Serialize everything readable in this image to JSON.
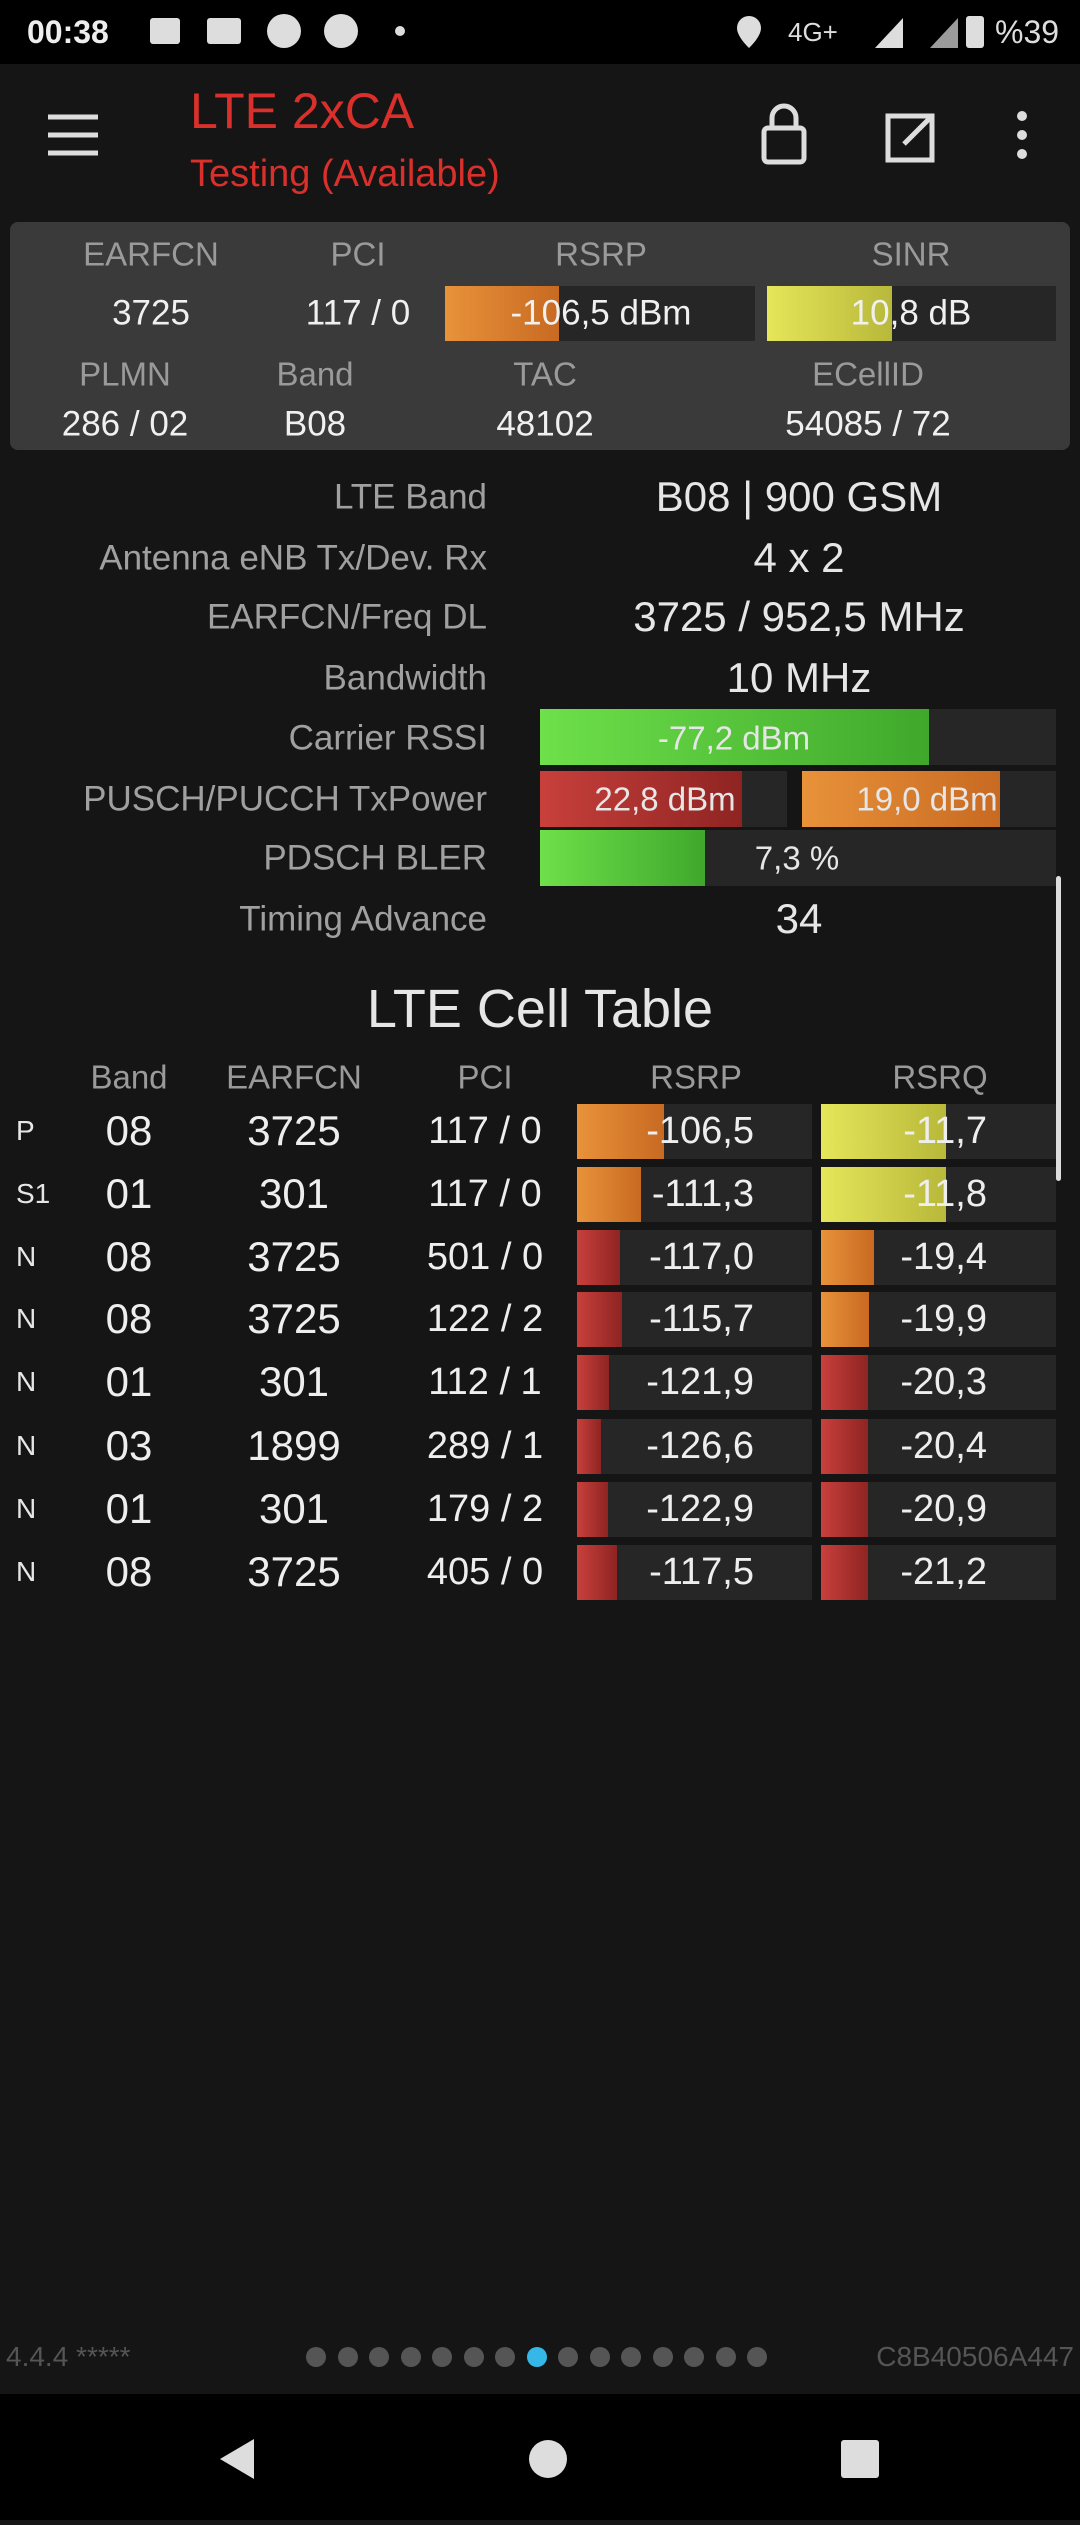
{
  "status_bar": {
    "time": "00:38",
    "network": "4G+",
    "battery": "%39"
  },
  "app_bar": {
    "title": "LTE 2xCA",
    "subtitle": "Testing (Available)"
  },
  "summary": {
    "headers": [
      "EARFCN",
      "PCI",
      "RSRP",
      "SINR"
    ],
    "values": [
      "3725",
      "117 / 0",
      "-106,5 dBm",
      "10,8 dB"
    ],
    "headers2": [
      "PLMN",
      "Band",
      "TAC",
      "ECellID"
    ],
    "values2": [
      "286 / 02",
      "B08",
      "48102",
      "54085 / 72"
    ]
  },
  "details": [
    {
      "label": "LTE Band",
      "values": [
        "B08 | 900 GSM"
      ]
    },
    {
      "label": "Antenna eNB Tx/Dev. Rx",
      "values": [
        "4 x 2"
      ]
    },
    {
      "label": "EARFCN/Freq DL",
      "values": [
        "3725 / 952,5 MHz"
      ]
    },
    {
      "label": "Bandwidth",
      "values": [
        "10 MHz"
      ]
    },
    {
      "label": "Carrier RSSI",
      "values": [
        "-77,2 dBm"
      ]
    },
    {
      "label": "PUSCH/PUCCH TxPower",
      "values": [
        "22,8 dBm",
        "19,0 dBm"
      ]
    },
    {
      "label": "PDSCH BLER",
      "values": [
        "7,3 %"
      ]
    },
    {
      "label": "Timing Advance",
      "values": [
        "34"
      ]
    }
  ],
  "cell_table": {
    "title": "LTE Cell Table",
    "columns": [
      "Band",
      "EARFCN",
      "PCI",
      "RSRP",
      "RSRQ"
    ],
    "rows": [
      [
        "P",
        "08",
        "3725",
        "117 / 0",
        "-106,5",
        "-11,7"
      ],
      [
        "S1",
        "01",
        "301",
        "117 / 0",
        "-111,3",
        "-11,8"
      ],
      [
        "N",
        "08",
        "3725",
        "501 / 0",
        "-117,0",
        "-19,4"
      ],
      [
        "N",
        "08",
        "3725",
        "122 / 2",
        "-115,7",
        "-19,9"
      ],
      [
        "N",
        "01",
        "301",
        "112 / 1",
        "-121,9",
        "-20,3"
      ],
      [
        "N",
        "03",
        "1899",
        "289 / 1",
        "-126,6",
        "-20,4"
      ],
      [
        "N",
        "01",
        "301",
        "179 / 2",
        "-122,9",
        "-20,9"
      ],
      [
        "N",
        "08",
        "3725",
        "405 / 0",
        "-117,5",
        "-21,2"
      ]
    ]
  },
  "footer": {
    "version": "4.4.4 *****",
    "device_id": "C8B40506A447"
  }
}
